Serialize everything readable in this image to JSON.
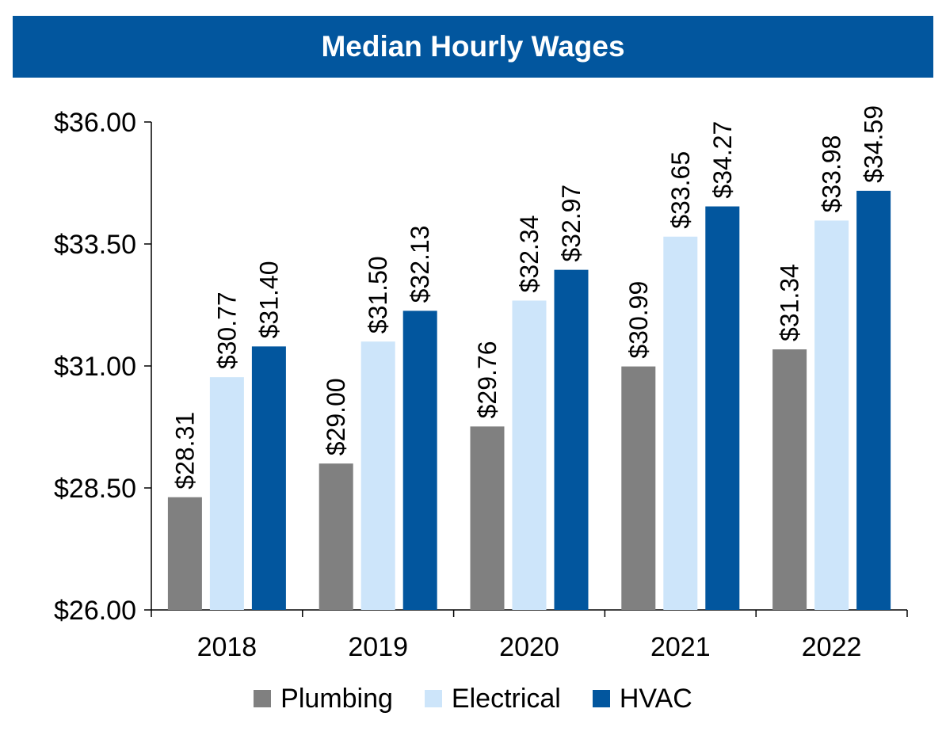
{
  "chart_data": {
    "type": "bar",
    "title": "Median Hourly Wages",
    "categories": [
      "2018",
      "2019",
      "2020",
      "2021",
      "2022"
    ],
    "series": [
      {
        "name": "Plumbing",
        "color": "#808080",
        "values": [
          28.31,
          29.0,
          29.76,
          30.99,
          31.34
        ],
        "labels": [
          "$28.31",
          "$29.00",
          "$29.76",
          "$30.99",
          "$31.34"
        ]
      },
      {
        "name": "Electrical",
        "color": "#cde5fa",
        "values": [
          30.77,
          31.5,
          32.34,
          33.65,
          33.98
        ],
        "labels": [
          "$30.77",
          "$31.50",
          "$32.34",
          "$33.65",
          "$33.98"
        ]
      },
      {
        "name": "HVAC",
        "color": "#02569e",
        "values": [
          31.4,
          32.13,
          32.97,
          34.27,
          34.59
        ],
        "labels": [
          "$31.40",
          "$32.13",
          "$32.97",
          "$34.27",
          "$34.59"
        ]
      }
    ],
    "ylim": [
      26,
      36
    ],
    "yticks": [
      26,
      28.5,
      31,
      33.5,
      36
    ],
    "ytick_labels": [
      "$26.00",
      "$28.50",
      "$31.00",
      "$33.50",
      "$36.00"
    ],
    "xlabel": "",
    "ylabel": "",
    "legend_position": "bottom",
    "grid": false
  },
  "colors": {
    "title_bg": "#02569e",
    "title_text": "#ffffff",
    "axis": "#000000"
  }
}
